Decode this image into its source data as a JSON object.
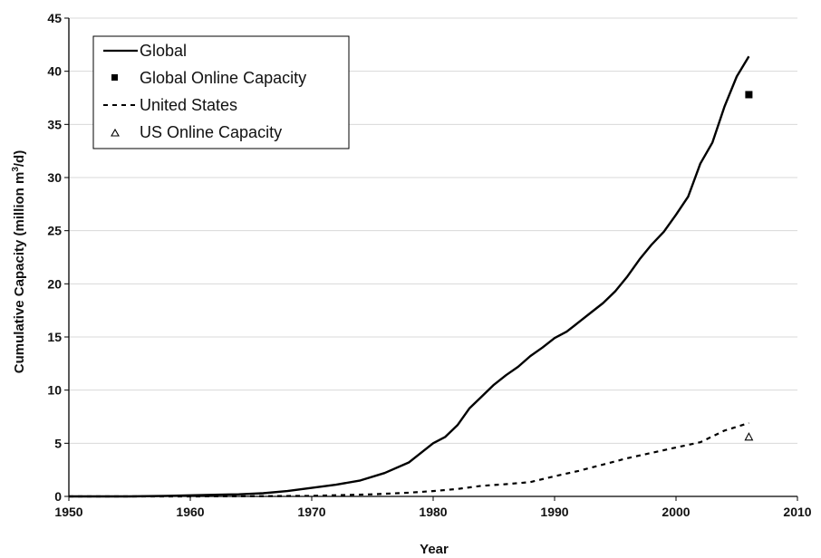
{
  "chart_data": {
    "type": "line",
    "xlabel": "Year",
    "ylabel": "Cumulative Capacity (million m",
    "ylabel_sup": "3",
    "ylabel_tail": "/d)",
    "xlim": [
      1950,
      2010
    ],
    "ylim": [
      0,
      45
    ],
    "xticks": [
      1950,
      1960,
      1970,
      1980,
      1990,
      2000,
      2010
    ],
    "yticks": [
      0,
      5,
      10,
      15,
      20,
      25,
      30,
      35,
      40,
      45
    ],
    "grid": "horizontal",
    "legend": "top-left",
    "series": [
      {
        "name": "Global",
        "style": "solid",
        "color": "#000000",
        "x": [
          1950,
          1955,
          1958,
          1960,
          1962,
          1964,
          1966,
          1968,
          1970,
          1972,
          1974,
          1976,
          1978,
          1980,
          1981,
          1982,
          1983,
          1984,
          1985,
          1986,
          1987,
          1988,
          1989,
          1990,
          1991,
          1992,
          1993,
          1994,
          1995,
          1996,
          1997,
          1998,
          1999,
          2000,
          2001,
          2002,
          2003,
          2004,
          2005,
          2006
        ],
        "y": [
          0,
          0,
          0.05,
          0.1,
          0.15,
          0.2,
          0.3,
          0.5,
          0.8,
          1.1,
          1.5,
          2.2,
          3.2,
          5.0,
          5.6,
          6.7,
          8.3,
          9.4,
          10.5,
          11.4,
          12.2,
          13.2,
          14.0,
          14.9,
          15.5,
          16.4,
          17.3,
          18.2,
          19.3,
          20.7,
          22.3,
          23.7,
          24.9,
          26.5,
          28.2,
          31.3,
          33.3,
          36.7,
          39.5,
          41.4
        ]
      },
      {
        "name": "Global Online Capacity",
        "style": "square-marker",
        "color": "#000000",
        "x": [
          2006
        ],
        "y": [
          37.8
        ]
      },
      {
        "name": "United States",
        "style": "dashed",
        "color": "#000000",
        "x": [
          1950,
          1960,
          1965,
          1970,
          1975,
          1978,
          1980,
          1982,
          1984,
          1986,
          1988,
          1990,
          1992,
          1994,
          1996,
          1998,
          2000,
          2002,
          2004,
          2006
        ],
        "y": [
          0,
          0,
          0.02,
          0.05,
          0.2,
          0.35,
          0.5,
          0.7,
          1.0,
          1.15,
          1.35,
          1.9,
          2.4,
          3.0,
          3.6,
          4.1,
          4.6,
          5.1,
          6.2,
          6.9
        ]
      },
      {
        "name": "US Online Capacity",
        "style": "triangle-marker",
        "color": "#000000",
        "x": [
          2006
        ],
        "y": [
          5.6
        ]
      }
    ]
  }
}
